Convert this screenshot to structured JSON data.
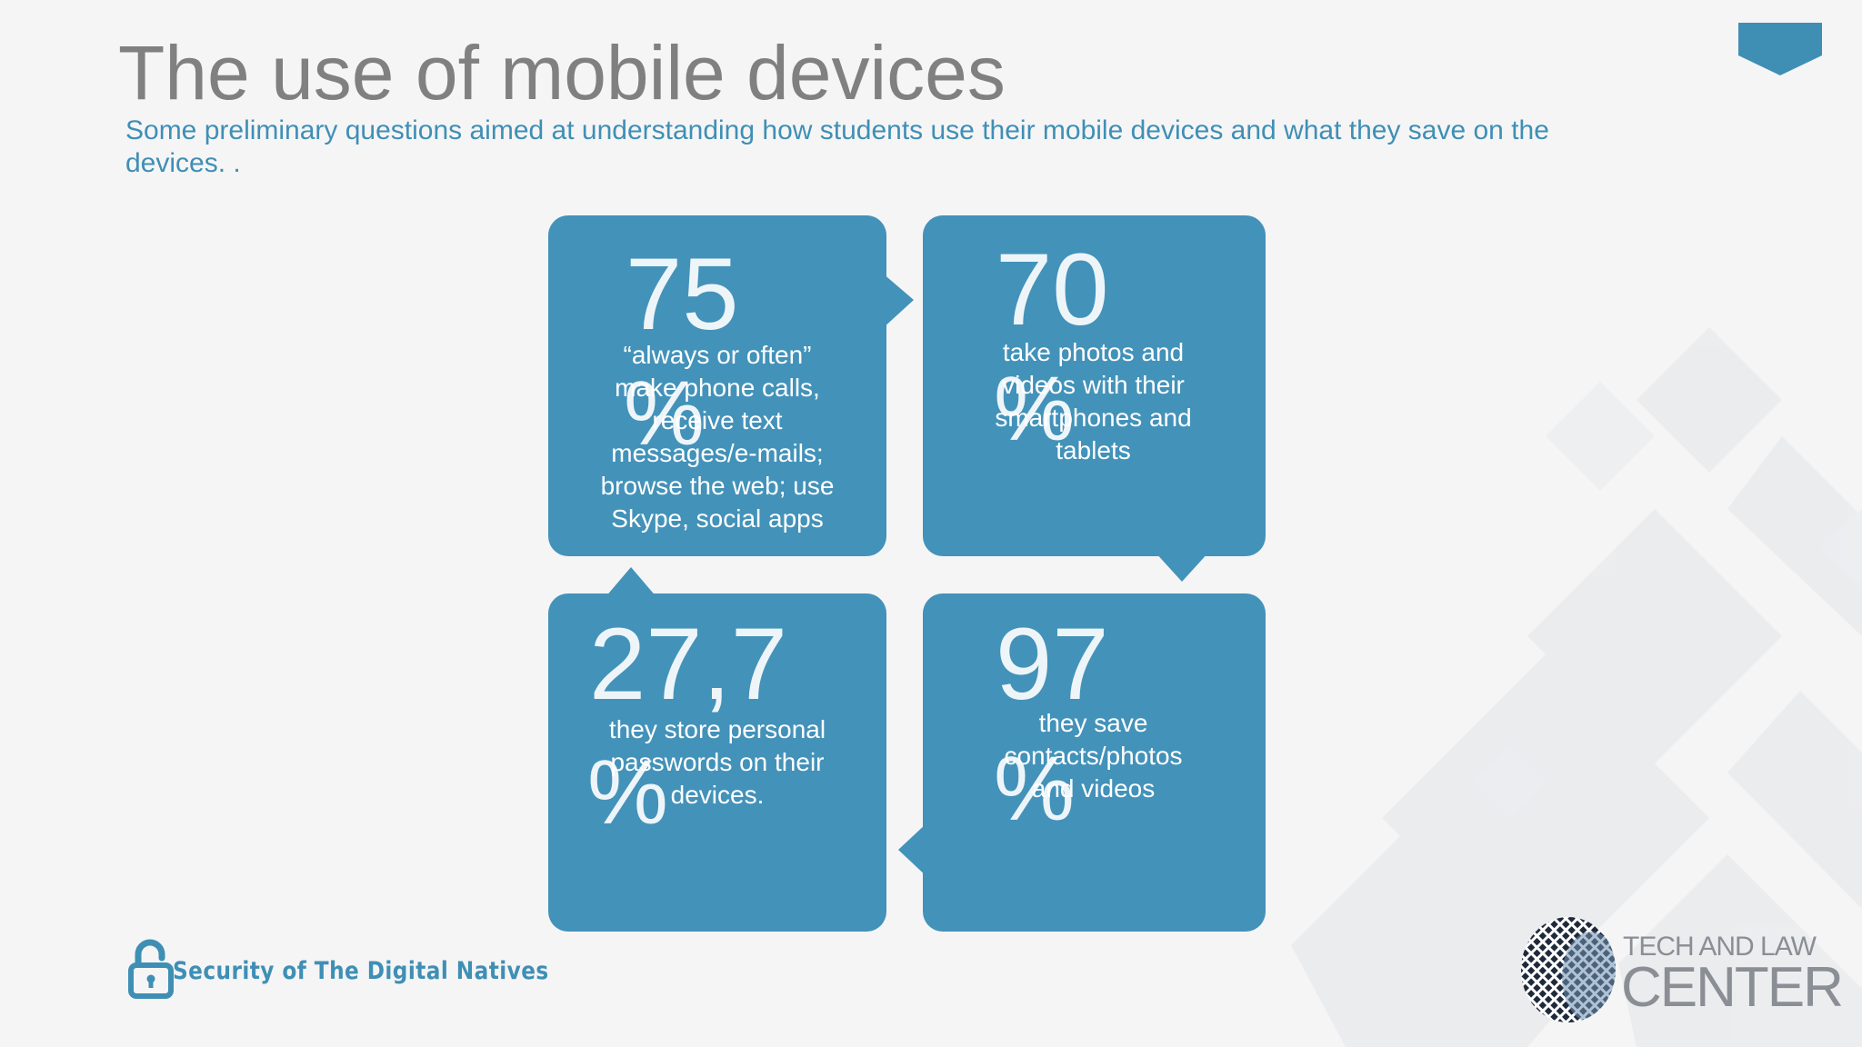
{
  "title": "The use of mobile devices",
  "subtitle": "Some preliminary questions aimed at understanding how students use their mobile devices and what they save on the devices. .",
  "colors": {
    "accent": "#3f8fb5",
    "box": "#4392b9",
    "title_gray": "#808080",
    "background": "#f5f5f6"
  },
  "stats": [
    {
      "value": "75",
      "unit": "%",
      "description": "“always or often” make phone calls, receive text messages/e-mails; browse the web; use Skype, social apps"
    },
    {
      "value": "70",
      "unit": "%",
      "description": "take photos and videos with their smartphones and tablets"
    },
    {
      "value": "27,7",
      "unit": "%",
      "description": "they store personal passwords on their devices."
    },
    {
      "value": "97",
      "unit": "%",
      "description": "they save contacts/photos and videos"
    }
  ],
  "footer": {
    "brand": "Security of The Digital Natives",
    "icon": "open-lock-icon"
  },
  "logo": {
    "line1": "TECH AND LAW",
    "line2": "CENTER",
    "icon": "globe-mosaic-icon"
  }
}
